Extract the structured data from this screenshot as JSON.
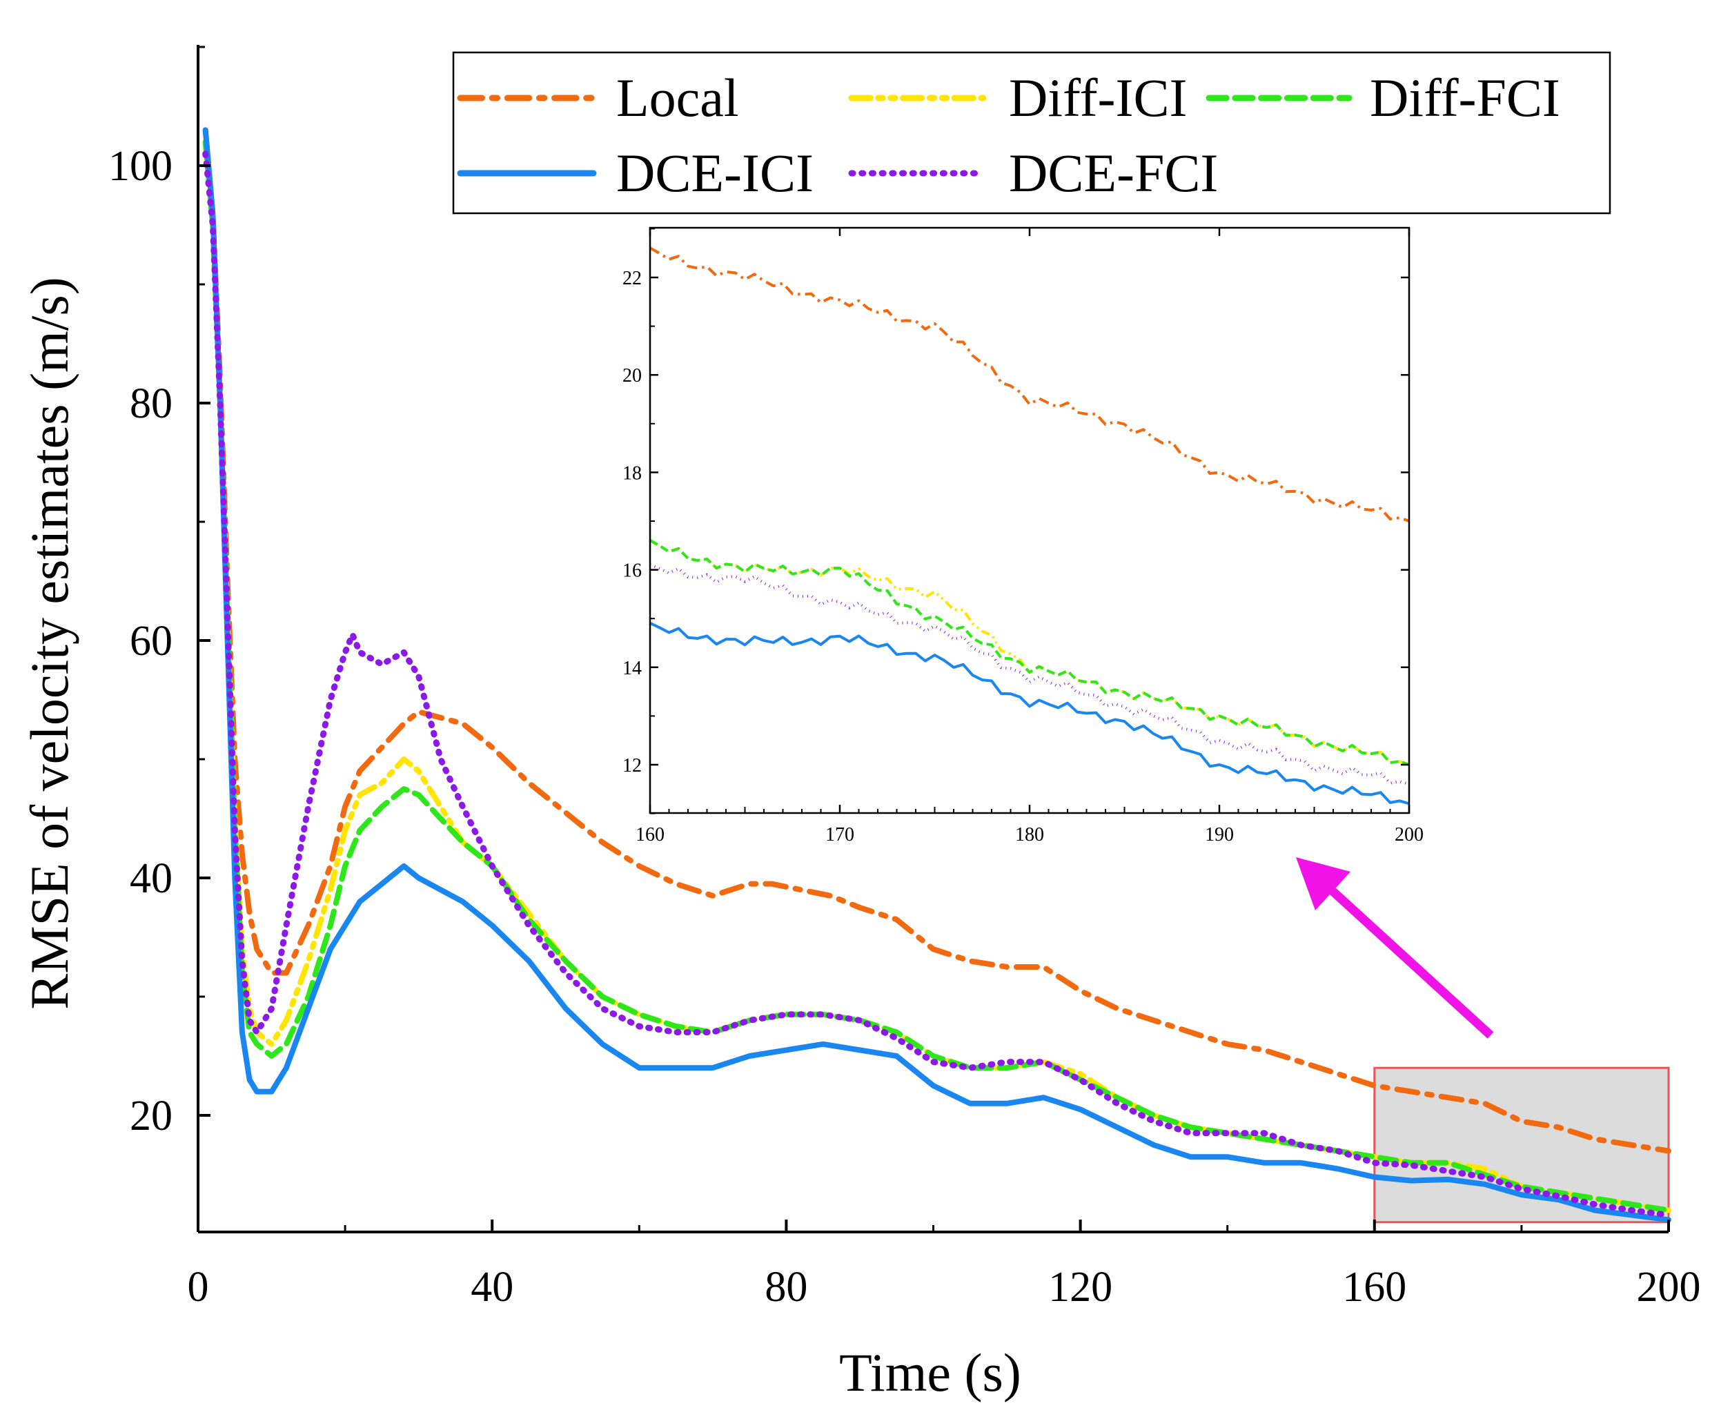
{
  "chart_data": {
    "type": "line",
    "xlabel": "Time (s)",
    "ylabel": "RMSE of velocity estimates (m/s)",
    "xlim": [
      0,
      200
    ],
    "ylim": [
      10,
      110
    ],
    "xticks": [
      0,
      40,
      80,
      120,
      160,
      200
    ],
    "yticks": [
      20,
      40,
      60,
      80,
      100
    ],
    "legend_position": "top-right",
    "series": [
      {
        "name": "Local",
        "color": "#f26a0f",
        "style": "dash-dot",
        "x": [
          1,
          2,
          3,
          4,
          5,
          6,
          7,
          8,
          10,
          12,
          15,
          18,
          20,
          22,
          25,
          28,
          30,
          33,
          36,
          40,
          45,
          50,
          55,
          60,
          65,
          70,
          75,
          78,
          82,
          86,
          90,
          95,
          100,
          105,
          110,
          115,
          120,
          125,
          130,
          135,
          140,
          145,
          150,
          155,
          160,
          165,
          170,
          175,
          180,
          185,
          190,
          195,
          200
        ],
        "y": [
          103,
          96,
          82,
          65,
          50,
          42,
          37,
          34,
          32,
          32,
          36,
          41,
          46,
          49,
          51,
          53,
          54,
          53.5,
          53,
          51,
          48,
          45.5,
          43,
          41,
          39.5,
          38.5,
          39.5,
          39.5,
          39,
          38.5,
          37.5,
          36.5,
          34,
          33,
          32.5,
          32.5,
          30.5,
          29,
          28,
          27,
          26,
          25.5,
          24.5,
          23.5,
          22.5,
          22,
          21.5,
          21,
          19.5,
          19,
          18,
          17.5,
          17
        ]
      },
      {
        "name": "Diff-ICI",
        "color": "#ffe500",
        "style": "dash-dot-dot",
        "x": [
          1,
          2,
          3,
          4,
          5,
          6,
          7,
          8,
          10,
          12,
          15,
          18,
          20,
          22,
          25,
          28,
          30,
          33,
          36,
          40,
          45,
          50,
          55,
          60,
          65,
          70,
          75,
          80,
          85,
          90,
          95,
          100,
          105,
          110,
          115,
          120,
          125,
          130,
          135,
          140,
          145,
          150,
          155,
          160,
          165,
          170,
          175,
          180,
          185,
          190,
          195,
          200
        ],
        "y": [
          102,
          95,
          80,
          62,
          45,
          34,
          29,
          27,
          26,
          28,
          33,
          39,
          44,
          47,
          48,
          50,
          49,
          46,
          43,
          41,
          37,
          33,
          30,
          28.5,
          27.5,
          27,
          28,
          28.5,
          28.5,
          28,
          27,
          25,
          24,
          24,
          24.5,
          23.5,
          21.5,
          20,
          19,
          18.5,
          18,
          17.5,
          17,
          16.5,
          16,
          16,
          15.5,
          14,
          13.5,
          13,
          12.5,
          12
        ]
      },
      {
        "name": "Diff-FCI",
        "color": "#2ee61a",
        "style": "dashed",
        "x": [
          1,
          2,
          3,
          4,
          5,
          6,
          7,
          8,
          10,
          12,
          15,
          18,
          20,
          22,
          25,
          28,
          30,
          33,
          36,
          40,
          45,
          50,
          55,
          60,
          65,
          70,
          75,
          80,
          85,
          90,
          95,
          100,
          105,
          110,
          115,
          120,
          125,
          130,
          135,
          140,
          145,
          150,
          155,
          160,
          165,
          170,
          175,
          180,
          185,
          190,
          195,
          200
        ],
        "y": [
          102,
          95,
          80,
          62,
          44,
          32,
          27,
          26,
          25,
          26,
          30,
          36,
          41,
          44,
          46,
          47.5,
          47,
          45,
          43,
          41,
          36.5,
          33,
          30,
          28.5,
          27.5,
          27,
          28,
          28.5,
          28.5,
          28,
          27,
          25,
          24,
          24,
          24.5,
          23,
          21.5,
          20,
          19,
          18.5,
          18,
          17.5,
          17,
          16.5,
          16,
          16,
          15,
          14,
          13.5,
          13,
          12.5,
          12
        ]
      },
      {
        "name": "DCE-ICI",
        "color": "#1a86f0",
        "style": "solid",
        "x": [
          1,
          2,
          3,
          4,
          5,
          6,
          7,
          8,
          10,
          12,
          15,
          18,
          20,
          22,
          25,
          28,
          30,
          33,
          36,
          40,
          45,
          50,
          55,
          60,
          65,
          70,
          75,
          80,
          85,
          90,
          95,
          100,
          105,
          110,
          115,
          120,
          125,
          130,
          135,
          140,
          145,
          150,
          155,
          160,
          165,
          170,
          175,
          180,
          185,
          190,
          195,
          200
        ],
        "y": [
          103,
          96,
          80,
          60,
          40,
          27,
          23,
          22,
          22,
          24,
          29,
          34,
          36,
          38,
          39.5,
          41,
          40,
          39,
          38,
          36,
          33,
          29,
          26,
          24,
          24,
          24,
          25,
          25.5,
          26,
          25.5,
          25,
          22.5,
          21,
          21,
          21.5,
          20.5,
          19,
          17.5,
          16.5,
          16.5,
          16,
          16,
          15.5,
          14.8,
          14.5,
          14.6,
          14.2,
          13.3,
          12.9,
          12,
          11.6,
          11.2
        ]
      },
      {
        "name": "DCE-FCI",
        "color": "#8b1ae8",
        "style": "dotted",
        "x": [
          1,
          2,
          3,
          4,
          5,
          6,
          7,
          8,
          10,
          12,
          15,
          18,
          20,
          21,
          22,
          25,
          28,
          30,
          33,
          36,
          40,
          45,
          50,
          55,
          60,
          65,
          70,
          75,
          80,
          85,
          90,
          95,
          100,
          105,
          110,
          115,
          120,
          125,
          130,
          135,
          140,
          145,
          150,
          155,
          160,
          165,
          170,
          175,
          180,
          185,
          190,
          195,
          200
        ],
        "y": [
          101,
          95,
          80,
          62,
          44,
          33,
          28,
          27,
          29,
          36,
          46,
          55,
          59,
          60.5,
          59,
          58,
          59,
          57,
          50,
          46,
          41,
          36,
          32,
          29,
          27.5,
          27,
          27,
          28,
          28.5,
          28.5,
          28,
          26.5,
          24.5,
          24,
          24.5,
          24.5,
          23,
          21,
          19.5,
          18.5,
          18.5,
          18.5,
          17.5,
          17,
          16,
          15.8,
          15.3,
          14.8,
          13.8,
          13.2,
          12.5,
          12,
          11.6
        ]
      }
    ],
    "inset": {
      "xlim": [
        160,
        200
      ],
      "ylim": [
        11,
        23
      ],
      "xticks": [
        160,
        170,
        180,
        190,
        200
      ],
      "yticks": [
        12,
        14,
        16,
        18,
        20,
        22
      ],
      "zoom_region": {
        "x": [
          160,
          200
        ],
        "y": [
          11,
          24
        ]
      }
    }
  }
}
